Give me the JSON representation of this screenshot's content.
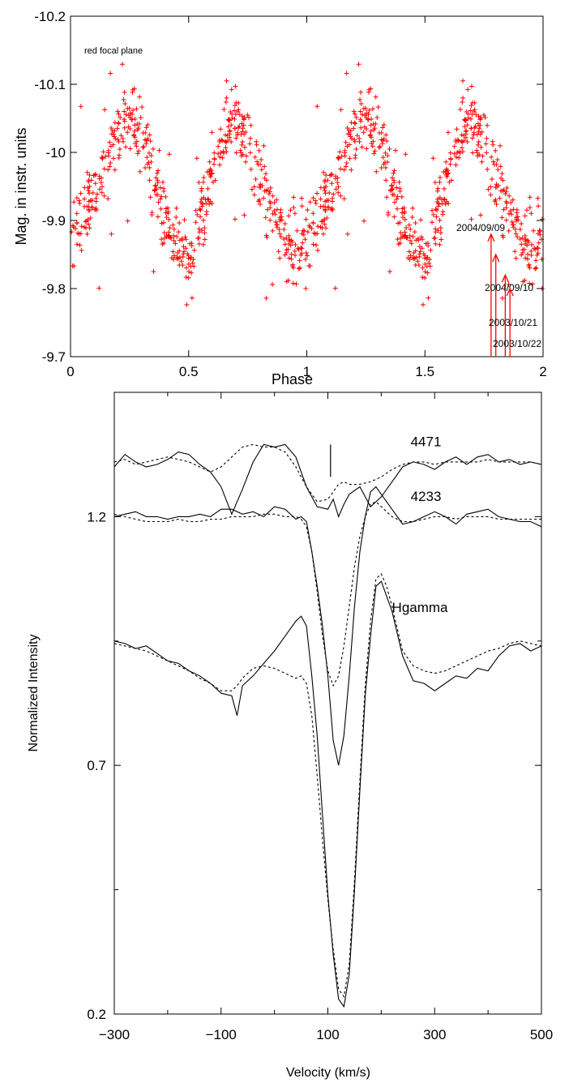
{
  "chart_data": [
    {
      "type": "scatter",
      "title": "",
      "annotation": "red focal plane",
      "xlabel": "Phase",
      "ylabel": "Mag. in instr. units",
      "xlim": [
        0,
        2
      ],
      "ylim": [
        -9.7,
        -10.2
      ],
      "y_inverted": true,
      "xticks": [
        0,
        0.5,
        1,
        1.5,
        2
      ],
      "xtick_labels": [
        "0",
        "0.5",
        "1",
        "1.5",
        "2"
      ],
      "yticks": [
        -9.7,
        -9.8,
        -9.9,
        -10,
        -10.1,
        -10.2
      ],
      "ytick_labels": [
        "-9.7",
        "-9.8",
        "-9.9",
        "-10",
        "-10.1",
        "-10.2"
      ],
      "marker": "+",
      "color": "#ff0000",
      "phase_curve": {
        "x": [
          0,
          0.05,
          0.1,
          0.15,
          0.2,
          0.25,
          0.3,
          0.35,
          0.4,
          0.45,
          0.5,
          0.55,
          0.6,
          0.65,
          0.7,
          0.75,
          0.8,
          0.85,
          0.9,
          0.95,
          1.0
        ],
        "y": [
          -9.87,
          -9.91,
          -9.94,
          -9.98,
          -10.03,
          -10.05,
          -10.03,
          -9.97,
          -9.91,
          -9.87,
          -9.83,
          -9.9,
          -9.97,
          -10.03,
          -10.05,
          -10.02,
          -9.97,
          -9.91,
          -9.87,
          -9.86,
          -9.87
        ],
        "scatter_sd": 0.025,
        "n_points_per_cycle": 560
      },
      "arrows": [
        {
          "label": "2004/09/09",
          "x": 1.78,
          "y_tip": -9.88
        },
        {
          "label": "2004/09/10",
          "x": 1.8,
          "y_tip": -9.85
        },
        {
          "label": "2003/10/21",
          "x": 1.84,
          "y_tip": -9.82
        },
        {
          "label": "2003/10/22",
          "x": 1.86,
          "y_tip": -9.8
        }
      ]
    },
    {
      "type": "line",
      "title": "",
      "xlabel": "Velocity (km/s)",
      "ylabel": "Normalized Intensity",
      "xlim": [
        -300,
        500
      ],
      "ylim": [
        0.2,
        1.45
      ],
      "xticks": [
        -300,
        -100,
        100,
        300,
        500
      ],
      "xtick_labels": [
        "−300",
        "−100",
        "100",
        "300",
        "500"
      ],
      "yticks": [
        0.2,
        0.7,
        1.2
      ],
      "ytick_labels": [
        "0.2",
        "0.7",
        "1.2"
      ],
      "minor_yticks": [
        0.45,
        0.95
      ],
      "line_labels": [
        {
          "text": "4471",
          "x": 255,
          "y": 1.342
        },
        {
          "text": "4233",
          "x": 255,
          "y": 1.232
        },
        {
          "text": "Hgamma",
          "x": 220,
          "y": 1.008
        }
      ],
      "marker_line": {
        "x": 105,
        "y0": 1.345,
        "y1": 1.28
      },
      "series": [
        {
          "style": "solid",
          "x": [
            -300,
            -280,
            -260,
            -240,
            -220,
            -200,
            -180,
            -160,
            -140,
            -120,
            -100,
            -80,
            -60,
            -40,
            -20,
            0,
            20,
            40,
            60,
            80,
            100,
            110,
            120,
            130,
            140,
            160,
            180,
            200,
            220,
            240,
            260,
            280,
            300,
            320,
            340,
            360,
            380,
            400,
            420,
            440,
            460,
            480,
            500
          ],
          "y": [
            1.3,
            1.325,
            1.31,
            1.3,
            1.305,
            1.315,
            1.33,
            1.325,
            1.305,
            1.29,
            1.26,
            1.205,
            1.255,
            1.31,
            1.345,
            1.34,
            1.345,
            1.32,
            1.26,
            1.22,
            1.215,
            1.235,
            1.2,
            1.225,
            1.245,
            1.26,
            1.22,
            1.24,
            1.27,
            1.3,
            1.31,
            1.305,
            1.295,
            1.31,
            1.32,
            1.305,
            1.32,
            1.325,
            1.31,
            1.315,
            1.305,
            1.31,
            1.305
          ]
        },
        {
          "style": "dashed",
          "x": [
            -300,
            -280,
            -260,
            -240,
            -220,
            -200,
            -180,
            -160,
            -140,
            -120,
            -100,
            -80,
            -60,
            -40,
            -20,
            0,
            20,
            40,
            60,
            80,
            100,
            110,
            120,
            130,
            140,
            160,
            180,
            200,
            220,
            240,
            260,
            280,
            300,
            320,
            340,
            360,
            380,
            400,
            420,
            440,
            460,
            480,
            500
          ],
          "y": [
            1.31,
            1.315,
            1.305,
            1.31,
            1.315,
            1.32,
            1.315,
            1.31,
            1.3,
            1.29,
            1.3,
            1.32,
            1.34,
            1.345,
            1.34,
            1.34,
            1.33,
            1.3,
            1.26,
            1.23,
            1.235,
            1.25,
            1.265,
            1.27,
            1.265,
            1.265,
            1.27,
            1.28,
            1.295,
            1.305,
            1.31,
            1.31,
            1.305,
            1.31,
            1.31,
            1.31,
            1.31,
            1.315,
            1.31,
            1.31,
            1.31,
            1.31,
            1.305
          ]
        },
        {
          "style": "solid",
          "x": [
            -300,
            -280,
            -260,
            -240,
            -220,
            -200,
            -180,
            -160,
            -140,
            -120,
            -100,
            -80,
            -60,
            -40,
            -20,
            0,
            20,
            40,
            50,
            60,
            70,
            80,
            90,
            100,
            110,
            120,
            130,
            140,
            150,
            160,
            170,
            180,
            190,
            200,
            220,
            240,
            260,
            280,
            300,
            320,
            340,
            360,
            380,
            400,
            420,
            440,
            460,
            480,
            500
          ],
          "y": [
            1.2,
            1.205,
            1.21,
            1.2,
            1.2,
            1.195,
            1.2,
            1.2,
            1.205,
            1.2,
            1.215,
            1.215,
            1.205,
            1.21,
            1.2,
            1.22,
            1.215,
            1.195,
            1.2,
            1.19,
            1.13,
            1.06,
            0.98,
            0.88,
            0.75,
            0.7,
            0.76,
            0.88,
            1.02,
            1.13,
            1.2,
            1.25,
            1.26,
            1.245,
            1.215,
            1.185,
            1.19,
            1.2,
            1.21,
            1.2,
            1.185,
            1.205,
            1.21,
            1.215,
            1.2,
            1.195,
            1.19,
            1.19,
            1.18
          ]
        },
        {
          "style": "dashed",
          "x": [
            -300,
            -280,
            -260,
            -240,
            -220,
            -200,
            -180,
            -160,
            -140,
            -120,
            -100,
            -80,
            -60,
            -40,
            -20,
            0,
            20,
            40,
            50,
            60,
            70,
            80,
            90,
            100,
            110,
            120,
            130,
            140,
            150,
            160,
            170,
            180,
            190,
            200,
            220,
            240,
            260,
            280,
            300,
            320,
            340,
            360,
            380,
            400,
            420,
            440,
            460,
            480,
            500
          ],
          "y": [
            1.205,
            1.2,
            1.195,
            1.19,
            1.19,
            1.19,
            1.195,
            1.19,
            1.19,
            1.195,
            1.195,
            1.2,
            1.2,
            1.2,
            1.205,
            1.205,
            1.2,
            1.2,
            1.195,
            1.18,
            1.13,
            1.05,
            0.96,
            0.89,
            0.86,
            0.88,
            0.94,
            1.02,
            1.1,
            1.16,
            1.2,
            1.225,
            1.23,
            1.22,
            1.2,
            1.19,
            1.19,
            1.195,
            1.2,
            1.2,
            1.195,
            1.2,
            1.2,
            1.2,
            1.195,
            1.195,
            1.195,
            1.195,
            1.195
          ]
        },
        {
          "style": "solid",
          "x": [
            -300,
            -280,
            -260,
            -240,
            -220,
            -200,
            -180,
            -160,
            -140,
            -120,
            -100,
            -80,
            -70,
            -60,
            -40,
            -20,
            0,
            20,
            40,
            50,
            60,
            70,
            80,
            90,
            100,
            110,
            120,
            130,
            140,
            150,
            160,
            170,
            180,
            190,
            200,
            210,
            220,
            240,
            260,
            280,
            300,
            320,
            340,
            360,
            380,
            400,
            420,
            440,
            460,
            480,
            500
          ],
          "y": [
            0.95,
            0.945,
            0.935,
            0.94,
            0.925,
            0.91,
            0.905,
            0.89,
            0.88,
            0.865,
            0.845,
            0.84,
            0.8,
            0.86,
            0.88,
            0.905,
            0.93,
            0.96,
            0.99,
            1.0,
            0.98,
            0.88,
            0.76,
            0.6,
            0.44,
            0.32,
            0.23,
            0.215,
            0.28,
            0.45,
            0.65,
            0.84,
            0.96,
            1.06,
            1.07,
            1.04,
            1.01,
            0.92,
            0.87,
            0.865,
            0.85,
            0.865,
            0.88,
            0.875,
            0.895,
            0.89,
            0.92,
            0.94,
            0.945,
            0.93,
            0.94
          ]
        },
        {
          "style": "dashed",
          "x": [
            -300,
            -280,
            -260,
            -240,
            -220,
            -200,
            -180,
            -160,
            -140,
            -120,
            -100,
            -80,
            -70,
            -60,
            -40,
            -20,
            0,
            20,
            40,
            50,
            60,
            70,
            80,
            90,
            100,
            110,
            120,
            130,
            140,
            150,
            160,
            170,
            180,
            190,
            200,
            210,
            220,
            240,
            260,
            280,
            300,
            320,
            340,
            360,
            380,
            400,
            420,
            440,
            460,
            480,
            500
          ],
          "y": [
            0.945,
            0.94,
            0.935,
            0.93,
            0.92,
            0.91,
            0.9,
            0.89,
            0.875,
            0.865,
            0.85,
            0.85,
            0.86,
            0.875,
            0.895,
            0.9,
            0.895,
            0.885,
            0.875,
            0.88,
            0.865,
            0.8,
            0.68,
            0.55,
            0.43,
            0.33,
            0.25,
            0.235,
            0.3,
            0.47,
            0.67,
            0.86,
            0.99,
            1.075,
            1.085,
            1.06,
            1.02,
            0.93,
            0.9,
            0.89,
            0.885,
            0.89,
            0.9,
            0.91,
            0.92,
            0.93,
            0.935,
            0.945,
            0.95,
            0.945,
            0.94
          ]
        }
      ]
    }
  ]
}
